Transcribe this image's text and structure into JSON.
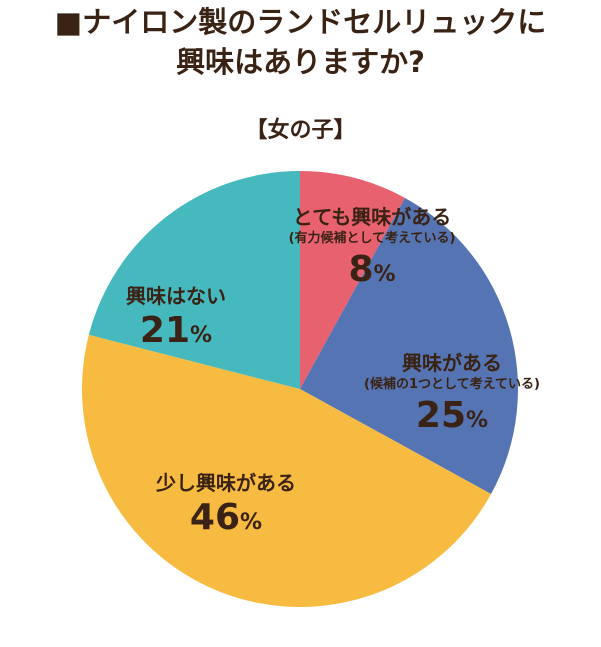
{
  "title_line1": "■ナイロン製のランドセルリュックに",
  "title_line2": "興味はありますか?",
  "subtitle": "【女の子】",
  "chart_data": {
    "type": "pie",
    "title": "■ナイロン製のランドセルリュックに興味はありますか?",
    "subtitle": "【女の子】",
    "slices": [
      {
        "label": "とても興味がある",
        "note": "(有力候補として考えている)",
        "value": 8,
        "color": "#e8616f"
      },
      {
        "label": "興味がある",
        "note": "(候補の1つとして考えている)",
        "value": 25,
        "color": "#5474b3"
      },
      {
        "label": "少し興味がある",
        "note": "",
        "value": 46,
        "color": "#f8bb41"
      },
      {
        "label": "興味はない",
        "note": "",
        "value": 21,
        "color": "#45b9be"
      }
    ]
  },
  "labels": [
    {
      "name": "とても興味がある",
      "note": "(有力候補として考えている)",
      "pct": "8",
      "unit": "%"
    },
    {
      "name": "興味がある",
      "note": "(候補の1つとして考えている)",
      "pct": "25",
      "unit": "%"
    },
    {
      "name": "少し興味がある",
      "note": "",
      "pct": "46",
      "unit": "%"
    },
    {
      "name": "興味はない",
      "note": "",
      "pct": "21",
      "unit": "%"
    }
  ]
}
